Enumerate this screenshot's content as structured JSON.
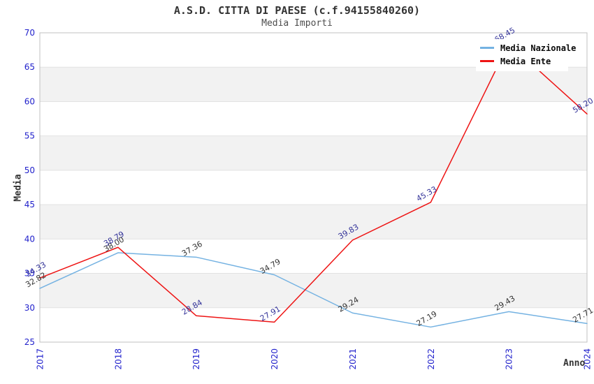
{
  "chart_data": {
    "type": "line",
    "title": "A.S.D. CITTA DI PAESE (c.f.94155840260)",
    "subtitle": "Media Importi",
    "xlabel": "Anno",
    "ylabel": "Media",
    "categories": [
      "2017",
      "2018",
      "2019",
      "2020",
      "2021",
      "2022",
      "2023",
      "2024"
    ],
    "series": [
      {
        "name": "Media Nazionale",
        "color": "#74b2e2",
        "label_color": "#333333",
        "values": [
          32.82,
          38.0,
          37.36,
          34.79,
          29.24,
          27.19,
          29.43,
          27.71
        ]
      },
      {
        "name": "Media Ente",
        "color": "#ee1414",
        "label_color": "#333399",
        "values": [
          34.33,
          38.79,
          28.84,
          27.91,
          39.83,
          45.33,
          68.45,
          58.2
        ]
      }
    ],
    "ylim": [
      25,
      70
    ],
    "ytick_step": 5,
    "legend_position": "top-right",
    "grid": "horizontal-bands",
    "styles": {
      "tick_label_color": "#2222cc",
      "band_color": "#f2f2f2",
      "grid_color": "#e2e2e2",
      "border_color": "#c0c0c0",
      "title_color": "#333333",
      "subtitle_color": "#4d4d4d"
    }
  }
}
